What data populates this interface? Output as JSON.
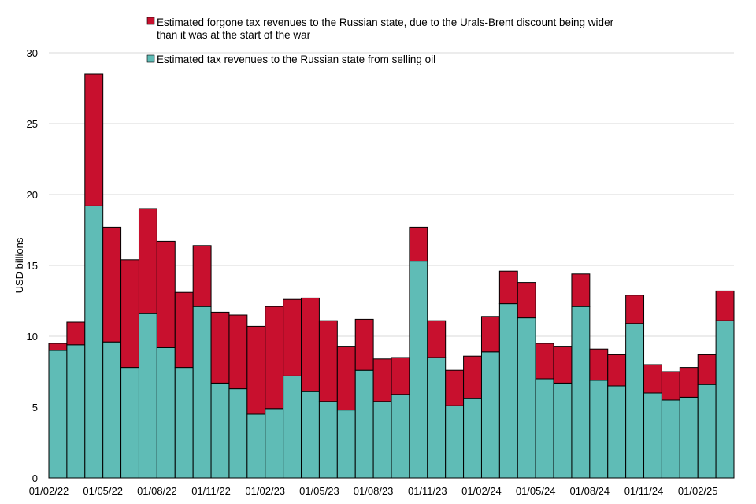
{
  "chart_data": {
    "type": "bar",
    "stacked": true,
    "ylabel": "USD billions",
    "xlabel": "",
    "ylim": [
      0,
      30
    ],
    "yticks": [
      0,
      5,
      10,
      15,
      20,
      25,
      30
    ],
    "grid": true,
    "legend_position": "top",
    "x_tick_labels": [
      "01/02/22",
      "01/05/22",
      "01/08/22",
      "01/11/22",
      "01/02/23",
      "01/05/23",
      "01/08/23",
      "01/11/23",
      "01/02/24",
      "01/05/24",
      "01/08/24",
      "01/11/24",
      "01/02/25"
    ],
    "x_tick_months": [
      0,
      3,
      6,
      9,
      12,
      15,
      18,
      21,
      24,
      27,
      30,
      33,
      36
    ],
    "categories": [
      "02/22",
      "03/22",
      "04/22",
      "05/22",
      "06/22",
      "07/22",
      "08/22",
      "09/22",
      "10/22",
      "11/22",
      "12/22",
      "01/23",
      "02/23",
      "03/23",
      "04/23",
      "05/23",
      "06/23",
      "07/23",
      "08/23",
      "09/23",
      "10/23",
      "11/23",
      "12/23",
      "01/24",
      "02/24",
      "03/24",
      "04/24",
      "05/24",
      "06/24",
      "07/24",
      "08/24",
      "09/24",
      "10/24",
      "11/24",
      "12/24",
      "01/25",
      "02/25",
      "03/25"
    ],
    "series": [
      {
        "name": "Estimated tax revenues to the Russian state from selling oil",
        "color": "#5fbcb6",
        "values": [
          9.0,
          9.4,
          19.2,
          9.6,
          7.8,
          11.6,
          9.2,
          7.8,
          12.1,
          6.7,
          6.3,
          4.5,
          4.9,
          7.2,
          6.1,
          5.4,
          4.8,
          7.6,
          5.4,
          5.9,
          15.3,
          8.5,
          5.1,
          5.6,
          8.9,
          12.3,
          11.3,
          7.0,
          6.7,
          12.1,
          6.9,
          6.5,
          10.9,
          6.0,
          5.5,
          5.7,
          6.6,
          11.1
        ]
      },
      {
        "name": "Estimated forgone tax revenues to the Russian state, due to the Urals-Brent discount being wider than it was at the start of the war",
        "color": "#c8102e",
        "values": [
          0.5,
          1.6,
          9.3,
          8.1,
          7.6,
          7.4,
          7.5,
          5.3,
          4.3,
          5.0,
          5.2,
          6.2,
          7.2,
          5.4,
          6.6,
          5.7,
          4.5,
          3.6,
          3.0,
          2.6,
          2.4,
          2.6,
          2.5,
          3.0,
          2.5,
          2.3,
          2.5,
          2.5,
          2.6,
          2.3,
          2.2,
          2.2,
          2.0,
          2.0,
          2.0,
          2.1,
          2.1,
          2.1
        ]
      }
    ]
  }
}
